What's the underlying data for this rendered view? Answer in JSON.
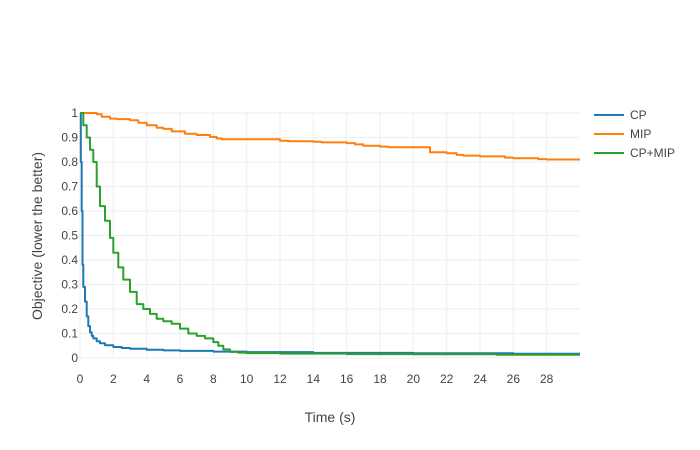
{
  "chart_data": {
    "type": "line",
    "line_shape": "step",
    "title": "",
    "xlabel": "Time (s)",
    "ylabel": "Objective (lower the better)",
    "xlim": [
      0,
      30
    ],
    "ylim": [
      0,
      1
    ],
    "x_ticks": [
      0,
      2,
      4,
      6,
      8,
      10,
      12,
      14,
      16,
      18,
      20,
      22,
      24,
      26,
      28
    ],
    "y_ticks": [
      0,
      0.1,
      0.2,
      0.3,
      0.4,
      0.5,
      0.6,
      0.7,
      0.8,
      0.9,
      1
    ],
    "y_tick_labels": [
      "0",
      "0.1",
      "0.2",
      "0.3",
      "0.4",
      "0.5",
      "0.6",
      "0.7",
      "0.8",
      "0.9",
      "1"
    ],
    "grid": true,
    "legend_position": "top-right",
    "series": [
      {
        "name": "CP",
        "color": "#1f77b4",
        "x": [
          0,
          0.05,
          0.1,
          0.15,
          0.2,
          0.3,
          0.4,
          0.5,
          0.6,
          0.7,
          0.8,
          1.0,
          1.2,
          1.5,
          2.0,
          2.5,
          3,
          4,
          5,
          6,
          8,
          10,
          14,
          20,
          26,
          30
        ],
        "y": [
          1.0,
          0.8,
          0.6,
          0.38,
          0.29,
          0.23,
          0.17,
          0.13,
          0.105,
          0.09,
          0.08,
          0.068,
          0.06,
          0.052,
          0.045,
          0.041,
          0.038,
          0.034,
          0.031,
          0.029,
          0.026,
          0.024,
          0.021,
          0.019,
          0.017,
          0.017
        ]
      },
      {
        "name": "MIP",
        "color": "#ff7f0e",
        "x": [
          0,
          1.0,
          1.3,
          1.8,
          2.2,
          3.0,
          3.5,
          4.0,
          4.6,
          5.0,
          5.5,
          6.3,
          7.0,
          7.8,
          8.2,
          8.5,
          10.0,
          12.0,
          12.5,
          14.0,
          14.5,
          16.0,
          16.5,
          17.0,
          18.0,
          18.5,
          21.0,
          22.0,
          22.6,
          23.0,
          24.0,
          25.5,
          26.0,
          27.5,
          28.0,
          30.0
        ],
        "y": [
          1.0,
          0.995,
          0.985,
          0.977,
          0.975,
          0.97,
          0.96,
          0.95,
          0.94,
          0.935,
          0.925,
          0.915,
          0.91,
          0.902,
          0.896,
          0.893,
          0.893,
          0.887,
          0.885,
          0.883,
          0.88,
          0.877,
          0.872,
          0.866,
          0.863,
          0.86,
          0.84,
          0.836,
          0.829,
          0.826,
          0.823,
          0.818,
          0.815,
          0.812,
          0.81,
          0.81
        ]
      },
      {
        "name": "CP+MIP",
        "color": "#2ca02c",
        "x": [
          0,
          0.2,
          0.4,
          0.6,
          0.8,
          1.0,
          1.2,
          1.5,
          1.8,
          2.0,
          2.3,
          2.6,
          3.0,
          3.4,
          3.8,
          4.2,
          4.6,
          5.0,
          5.5,
          6.0,
          6.5,
          7.0,
          7.5,
          8.0,
          8.3,
          8.6,
          9.0,
          9.5,
          10.0,
          12.0,
          16.0,
          20.0,
          25.0,
          30.0
        ],
        "y": [
          1.0,
          0.95,
          0.9,
          0.85,
          0.8,
          0.7,
          0.62,
          0.56,
          0.49,
          0.43,
          0.37,
          0.32,
          0.27,
          0.22,
          0.2,
          0.18,
          0.16,
          0.15,
          0.14,
          0.12,
          0.1,
          0.09,
          0.08,
          0.065,
          0.05,
          0.035,
          0.025,
          0.022,
          0.02,
          0.018,
          0.016,
          0.015,
          0.013,
          0.013
        ]
      }
    ]
  }
}
